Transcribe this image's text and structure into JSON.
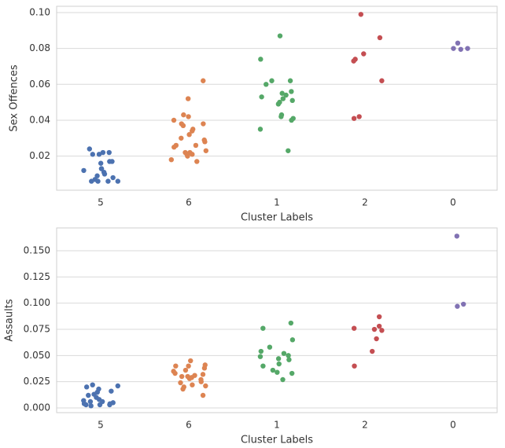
{
  "chart_data": [
    {
      "type": "strip",
      "ylabel": "Sex Offences",
      "xlabel": "Cluster Labels",
      "categories": [
        "5",
        "6",
        "1",
        "2",
        "0"
      ],
      "colors": [
        "#4c72b0",
        "#dd8452",
        "#55a868",
        "#c44e52",
        "#8172b3"
      ],
      "ylim": [
        0.001,
        0.1035
      ],
      "yticks": [
        0.02,
        0.04,
        0.06,
        0.08,
        {
          "value": 0.1,
          "label": "0.10"
        }
      ],
      "grid": true,
      "values": [
        [
          0.024,
          0.022,
          0.022,
          0.021,
          0.021,
          0.017,
          0.017,
          0.016,
          0.013,
          0.013,
          0.012,
          0.011,
          0.01,
          0.009,
          0.008,
          0.007,
          0.006,
          0.006,
          0.006,
          0.006
        ],
        [
          0.062,
          0.052,
          0.043,
          0.042,
          0.04,
          0.038,
          0.038,
          0.037,
          0.035,
          0.034,
          0.032,
          0.03,
          0.029,
          0.028,
          0.026,
          0.026,
          0.025,
          0.023,
          0.022,
          0.022,
          0.021,
          0.021,
          0.02,
          0.018,
          0.017
        ],
        [
          0.087,
          0.074,
          0.062,
          0.062,
          0.06,
          0.056,
          0.055,
          0.054,
          0.053,
          0.052,
          0.051,
          0.05,
          0.049,
          0.043,
          0.042,
          0.041,
          0.04,
          0.035,
          0.023
        ],
        [
          0.099,
          0.086,
          0.077,
          0.074,
          0.073,
          0.062,
          0.042,
          0.041
        ],
        [
          0.083,
          0.08,
          0.08,
          0.0795
        ]
      ]
    },
    {
      "type": "strip",
      "ylabel": "Assaults",
      "xlabel": "Cluster Labels",
      "categories": [
        "5",
        "6",
        "1",
        "2",
        "0"
      ],
      "colors": [
        "#4c72b0",
        "#dd8452",
        "#55a868",
        "#c44e52",
        "#8172b3"
      ],
      "ylim": [
        -0.0045,
        0.1718
      ],
      "yticks": [
        {
          "value": 0,
          "label": "0.000"
        },
        0.025,
        {
          "value": 0.05,
          "label": "0.050"
        },
        0.075,
        {
          "value": 0.1,
          "label": "0.100"
        },
        0.125,
        {
          "value": 0.15,
          "label": "0.150"
        }
      ],
      "grid": true,
      "values": [
        [
          0.022,
          0.021,
          0.02,
          0.018,
          0.016,
          0.015,
          0.013,
          0.012,
          0.01,
          0.008,
          0.007,
          0.006,
          0.006,
          0.005,
          0.004,
          0.004,
          0.003,
          0.003,
          0.003,
          0.002
        ],
        [
          0.045,
          0.041,
          0.04,
          0.04,
          0.038,
          0.036,
          0.035,
          0.033,
          0.032,
          0.031,
          0.03,
          0.03,
          0.029,
          0.028,
          0.027,
          0.025,
          0.024,
          0.022,
          0.021,
          0.02,
          0.018,
          0.012
        ],
        [
          0.081,
          0.076,
          0.065,
          0.058,
          0.054,
          0.052,
          0.05,
          0.049,
          0.047,
          0.046,
          0.042,
          0.04,
          0.036,
          0.034,
          0.033,
          0.027
        ],
        [
          0.087,
          0.078,
          0.076,
          0.075,
          0.074,
          0.066,
          0.054,
          0.04
        ],
        [
          0.164,
          0.099,
          0.097
        ]
      ]
    }
  ]
}
